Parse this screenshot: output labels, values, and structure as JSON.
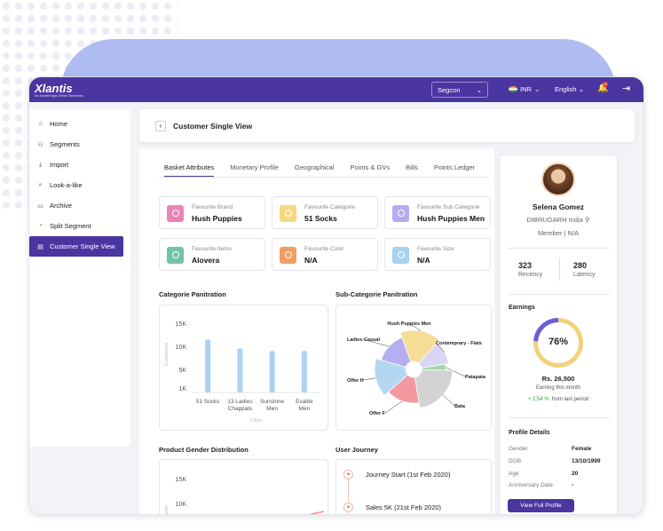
{
  "topbar": {
    "logo": "Xlantis",
    "logo_tagline": "An Amberlogix Wired Business",
    "segment_selected": "Segcon",
    "currency": "INR",
    "language": "English",
    "notification_count": "12"
  },
  "sidebar": {
    "items": [
      {
        "label": "Home",
        "icon": "home-icon"
      },
      {
        "label": "Segments",
        "icon": "users-icon"
      },
      {
        "label": "Import",
        "icon": "import-icon"
      },
      {
        "label": "Look-a-like",
        "icon": "search-icon"
      },
      {
        "label": "Archive",
        "icon": "archive-icon"
      },
      {
        "label": "Split Segment",
        "icon": "pie-icon"
      },
      {
        "label": "Customer Single View",
        "icon": "document-icon",
        "active": true
      }
    ]
  },
  "page": {
    "title": "Customer Single View"
  },
  "tabs": [
    "Basket Attributes",
    "Monetary Profile",
    "Geographical",
    "Points & GVs",
    "Bills",
    "Points Ledger"
  ],
  "attributes": [
    {
      "label": "Favourite Brand",
      "value": "Hush Puppies",
      "color": "#ee82b8"
    },
    {
      "label": "Favourite Categorie",
      "value": "51 Socks",
      "color": "#f6d87e"
    },
    {
      "label": "Favourite Sub Categorie",
      "value": "Hush Puppies Men",
      "color": "#b3adf0"
    },
    {
      "label": "Favourite Items",
      "value": "Alovera",
      "color": "#6fc4a4"
    },
    {
      "label": "Favourite Color",
      "value": "N/A",
      "color": "#ef9f63"
    },
    {
      "label": "Favourite Size",
      "value": "N/A",
      "color": "#a8d1f2"
    }
  ],
  "sections": {
    "categorie": "Categorie Panitration",
    "subcategorie": "Sub-Categorie Panitration",
    "gender": "Product Gender Distribution",
    "journey": "User Journey"
  },
  "chart_data": [
    {
      "type": "bar",
      "categories": [
        "51 Socks",
        "13 Ladies Chappals",
        "Sunshine Men",
        "Evalite Men"
      ],
      "values": [
        11500,
        9500,
        9000,
        9000
      ],
      "yticks": [
        "15K",
        "10K",
        "5K",
        "1K"
      ],
      "ylim": [
        0,
        15000
      ],
      "ylabel": "Customers",
      "xlabel": "Cities"
    },
    {
      "type": "pie",
      "labels": [
        "Hush Puppies Men",
        "Contemprary - Flats",
        "Patapata",
        "Bata",
        "Offer F",
        "Offer H",
        "Ladies Casual"
      ],
      "values": [
        17,
        11,
        3,
        22,
        16,
        16,
        15
      ],
      "colors": [
        "#f7dc95",
        "#d9d6f4",
        "#9fd69b",
        "#d3d3d3",
        "#f29aa0",
        "#b3d6f2",
        "#b5aef0"
      ]
    },
    {
      "type": "line",
      "yticks": [
        "15K",
        "10K"
      ],
      "ylabel": "Counts"
    }
  ],
  "journey": [
    {
      "label": "Journey Start (1st Feb 2020)"
    },
    {
      "label": "Sales 5K (21st Feb 2020)"
    }
  ],
  "profile": {
    "name": "Selena Gomez",
    "location": "DIBRUGARH India",
    "membership": "Member | N/A",
    "recency_value": "323",
    "recency_label": "Recency",
    "latency_value": "280",
    "latency_label": "Latency",
    "earnings_title": "Earnings",
    "earnings_percent": "76%",
    "earnings_fraction": 0.76,
    "earnings_amount": "Rs. 26,500",
    "earnings_caption": "Earning this month",
    "trend_value": "+ 2.54 %",
    "trend_caption": "from last period",
    "details_title": "Profile Details",
    "details": [
      {
        "key": "Gender",
        "value": "Female"
      },
      {
        "key": "DGB",
        "value": "13/10/1999"
      },
      {
        "key": "Age",
        "value": "20"
      },
      {
        "key": "Anniversary Date",
        "value": "-"
      }
    ],
    "view_button": "View Full Profile"
  }
}
